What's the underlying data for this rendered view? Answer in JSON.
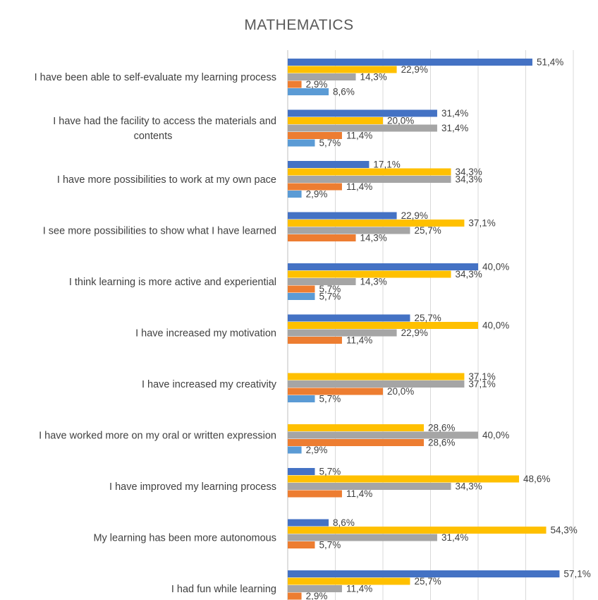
{
  "chart_data": {
    "type": "bar",
    "orientation": "horizontal",
    "title": "MATHEMATICS",
    "xlabel": "",
    "ylabel": "",
    "xlim": [
      0,
      60
    ],
    "grid": true,
    "categories": [
      [
        "I have been able to self-evaluate my learning process"
      ],
      [
        "I have had the facility to access the materials and",
        "contents"
      ],
      [
        "I have more possibilities to work at my own pace"
      ],
      [
        "I see more possibilities to show what I have learned"
      ],
      [
        "I think learning is more active and experiential"
      ],
      [
        "I have increased my motivation"
      ],
      [
        "I have increased my creativity"
      ],
      [
        "I have worked more on my oral or written expression"
      ],
      [
        "I have improved my learning process"
      ],
      [
        "My learning has been more autonomous"
      ],
      [
        "I had fun while learning"
      ]
    ],
    "series": [
      {
        "color": "#4472C4",
        "values": [
          51.4,
          31.4,
          17.1,
          22.9,
          40.0,
          25.7,
          0,
          0,
          5.7,
          8.6,
          57.1
        ]
      },
      {
        "color": "#FFC000",
        "values": [
          22.9,
          20.0,
          34.3,
          37.1,
          34.3,
          40.0,
          37.1,
          28.6,
          48.6,
          54.3,
          25.7
        ]
      },
      {
        "color": "#A5A5A5",
        "values": [
          14.3,
          31.4,
          34.3,
          25.7,
          14.3,
          22.9,
          37.1,
          40.0,
          34.3,
          31.4,
          11.4
        ]
      },
      {
        "color": "#ED7D31",
        "values": [
          2.9,
          11.4,
          11.4,
          14.3,
          5.7,
          11.4,
          20.0,
          28.6,
          11.4,
          5.7,
          2.9
        ]
      },
      {
        "color": "#5B9BD5",
        "values": [
          8.6,
          5.7,
          2.9,
          0,
          5.7,
          0,
          5.7,
          2.9,
          0,
          0,
          0
        ]
      }
    ]
  }
}
